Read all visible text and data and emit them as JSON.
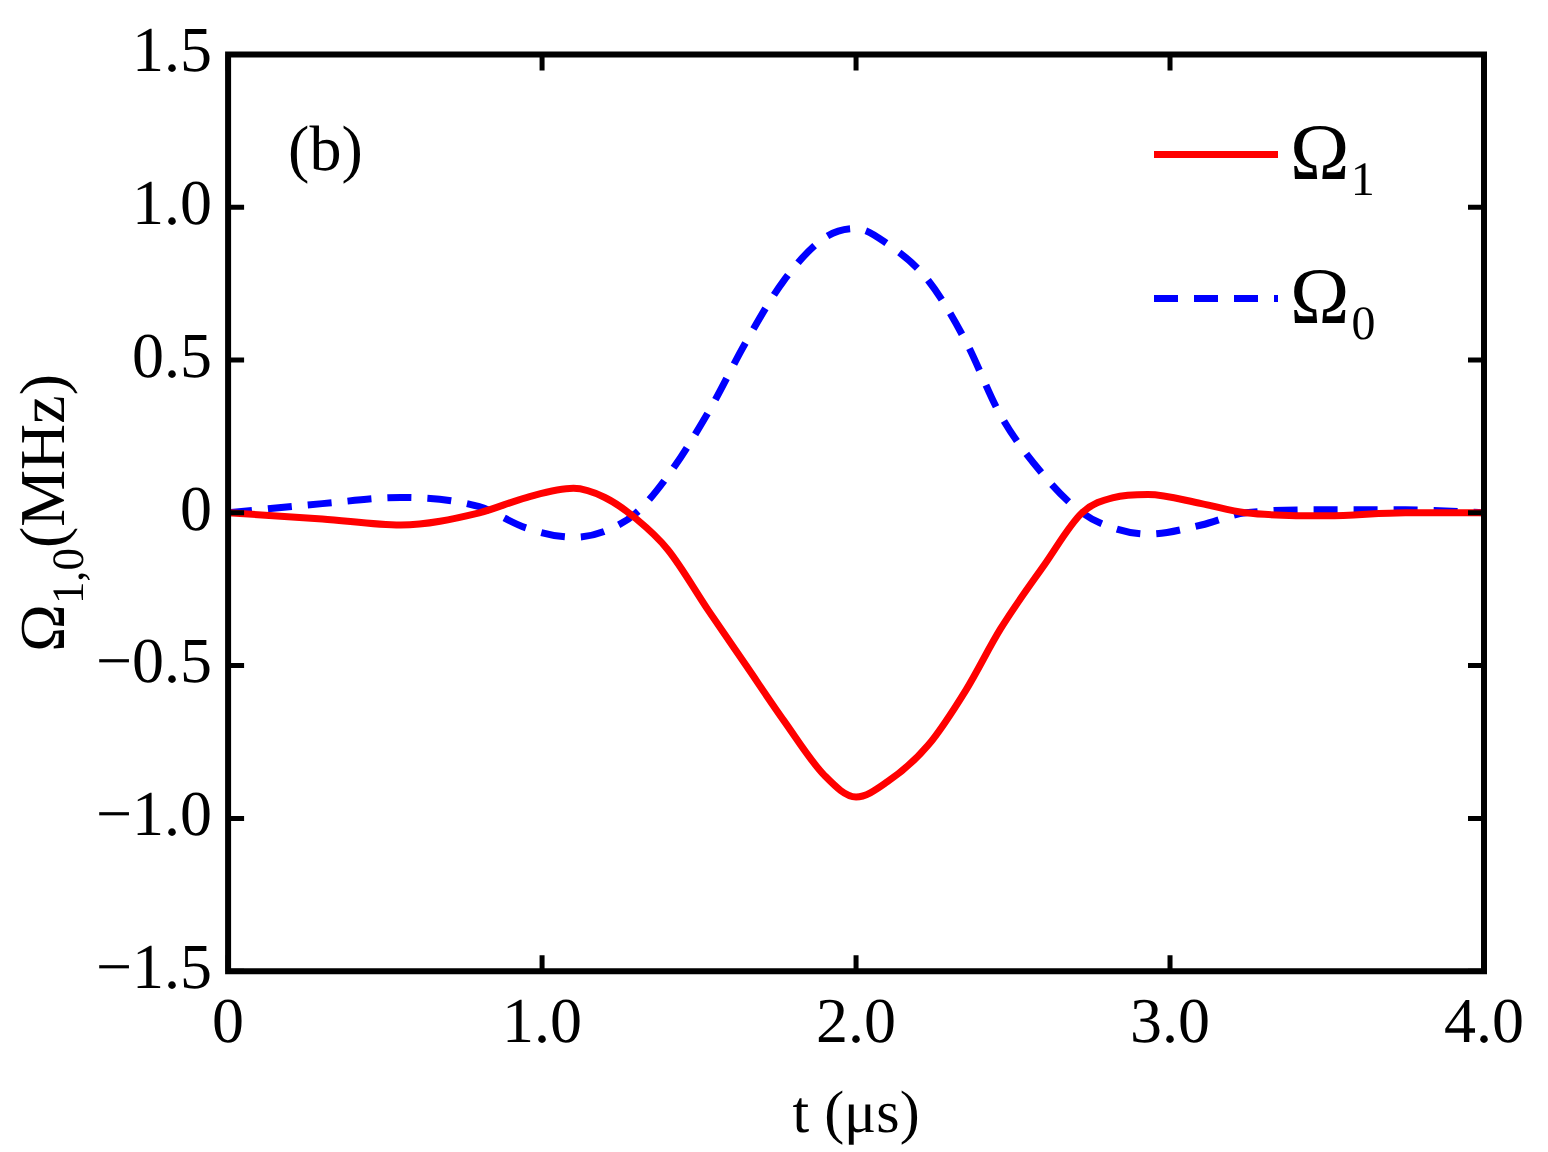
{
  "chart_data": {
    "type": "line",
    "xlabel": "t (μs)",
    "ylabel": "Ω$_{1,0}$(MHz)",
    "annotations": [
      "(b)"
    ],
    "xlim": [
      0,
      4
    ],
    "xticks": [
      0,
      {
        "value": 1,
        "label": "1.0"
      },
      {
        "value": 2,
        "label": "2.0"
      },
      {
        "value": 3,
        "label": "3.0"
      },
      {
        "value": 4,
        "label": "4.0"
      }
    ],
    "ylim": [
      -1.5,
      1.5
    ],
    "yticks": [
      {
        "value": -1.5,
        "label": "−1.5"
      },
      {
        "value": -1,
        "label": "−1.0"
      },
      {
        "value": -0.5,
        "label": "−0.5"
      },
      0,
      0.5,
      {
        "value": 1,
        "label": "1.0"
      },
      1.5
    ],
    "grid": false,
    "legend": "top right",
    "marker": "none",
    "series": [
      {
        "name": "Ω₁",
        "color": "#ff0000",
        "line_style": "solid",
        "x": [
          0,
          0.3,
          0.55,
          0.8,
          0.95,
          1.1,
          1.2,
          1.3,
          1.4,
          1.53,
          1.65,
          1.77,
          1.9,
          2,
          2.1,
          2.23,
          2.35,
          2.46,
          2.6,
          2.72,
          2.82,
          2.93,
          3.1,
          3.24,
          3.5,
          3.75,
          4
        ],
        "values": [
          0,
          -0.02,
          -0.04,
          0,
          0.05,
          0.08,
          0.05,
          -0.02,
          -0.12,
          -0.32,
          -0.5,
          -0.68,
          -0.86,
          -0.93,
          -0.88,
          -0.76,
          -0.58,
          -0.38,
          -0.17,
          0,
          0.05,
          0.06,
          0.03,
          0,
          -0.01,
          0,
          0
        ]
      },
      {
        "name": "Ω₀",
        "color": "#0000ff",
        "line_style": "dashed",
        "x": [
          0,
          0.3,
          0.55,
          0.8,
          0.95,
          1.1,
          1.2,
          1.3,
          1.4,
          1.53,
          1.65,
          1.77,
          1.9,
          2,
          2.1,
          2.23,
          2.35,
          2.46,
          2.6,
          2.72,
          2.82,
          2.93,
          3.1,
          3.24,
          3.5,
          3.75,
          4
        ],
        "values": [
          0,
          0.03,
          0.05,
          0.02,
          -0.05,
          -0.08,
          -0.06,
          0,
          0.12,
          0.33,
          0.56,
          0.76,
          0.9,
          0.93,
          0.88,
          0.76,
          0.56,
          0.32,
          0.12,
          0,
          -0.05,
          -0.07,
          -0.04,
          0,
          0.01,
          0.01,
          0
        ]
      }
    ]
  }
}
